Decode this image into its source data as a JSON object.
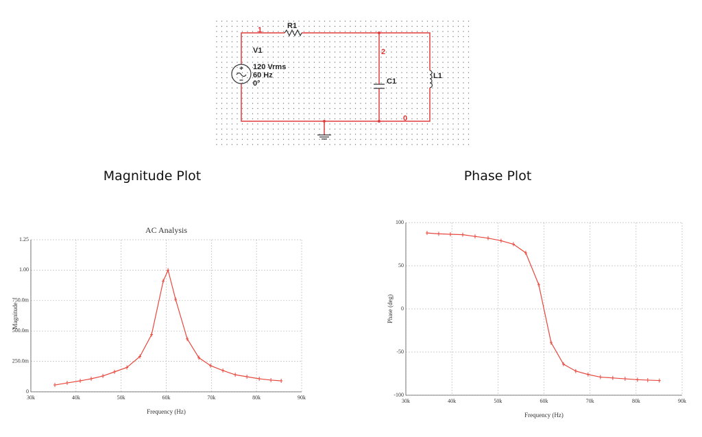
{
  "circuit": {
    "source": {
      "name": "V1",
      "voltage": "120 Vrms",
      "frequency": "60 Hz",
      "phase": "0°"
    },
    "resistor": "R1",
    "capacitor": "C1",
    "inductor": "L1",
    "nodes": [
      "1",
      "2",
      "0"
    ]
  },
  "headings": {
    "magnitude": "Magnitude Plot",
    "phase": "Phase Plot"
  },
  "chart_data": [
    {
      "type": "line",
      "title": "AC Analysis",
      "xlabel": "Frequency (Hz)",
      "ylabel": "Magnitude",
      "color": "#e8463c",
      "grid": true,
      "x": [
        35320,
        38050,
        40940,
        43370,
        45960,
        48540,
        51280,
        54160,
        56750,
        59330,
        60400,
        62070,
        64650,
        67230,
        69820,
        72550,
        75290,
        77870,
        80610,
        83190,
        85470
      ],
      "values": [
        0.056,
        0.073,
        0.09,
        0.107,
        0.13,
        0.164,
        0.2,
        0.29,
        0.47,
        0.91,
        1.0,
        0.76,
        0.435,
        0.28,
        0.215,
        0.175,
        0.14,
        0.124,
        0.107,
        0.096,
        0.09
      ],
      "xlim": [
        30000,
        90000
      ],
      "xticks": [
        {
          "value": 30000,
          "label": "30k"
        },
        {
          "value": 40000,
          "label": "40k"
        },
        {
          "value": 50000,
          "label": "50k"
        },
        {
          "value": 60000,
          "label": "60k"
        },
        {
          "value": 70000,
          "label": "70k"
        },
        {
          "value": 80000,
          "label": "80k"
        },
        {
          "value": 90000,
          "label": "90k"
        }
      ],
      "ylim": [
        0,
        1.25
      ],
      "yticks": [
        0,
        {
          "value": 0.25,
          "label": "250.0m"
        },
        {
          "value": 0.5,
          "label": "500.0m"
        },
        {
          "value": 0.75,
          "label": "750.0m"
        },
        {
          "value": 1,
          "label": "1.00"
        },
        1.25
      ]
    },
    {
      "type": "line",
      "xlabel": "Frequency (Hz)",
      "ylabel": "Phase (deg)",
      "color": "#e8463c",
      "grid": true,
      "x": [
        34610,
        37140,
        39670,
        42350,
        45030,
        47860,
        50680,
        53360,
        56040,
        58870,
        61550,
        64230,
        66900,
        69580,
        72260,
        74940,
        77620,
        80300,
        82530,
        85060
      ],
      "values": [
        88,
        87,
        86.5,
        86,
        84,
        82,
        79,
        75,
        65,
        28,
        -39,
        -64,
        -72,
        -76,
        -79,
        -80,
        -81,
        -82,
        -82.5,
        -83
      ],
      "xlim": [
        30000,
        90000
      ],
      "xticks": [
        {
          "value": 30000,
          "label": "30k"
        },
        {
          "value": 40000,
          "label": "40k"
        },
        {
          "value": 50000,
          "label": "50k"
        },
        {
          "value": 60000,
          "label": "60k"
        },
        {
          "value": 70000,
          "label": "70k"
        },
        {
          "value": 80000,
          "label": "80k"
        },
        {
          "value": 90000,
          "label": "90k"
        }
      ],
      "ylim": [
        -100,
        100
      ],
      "yticks": [
        -100,
        -50,
        0,
        50,
        100
      ]
    }
  ]
}
